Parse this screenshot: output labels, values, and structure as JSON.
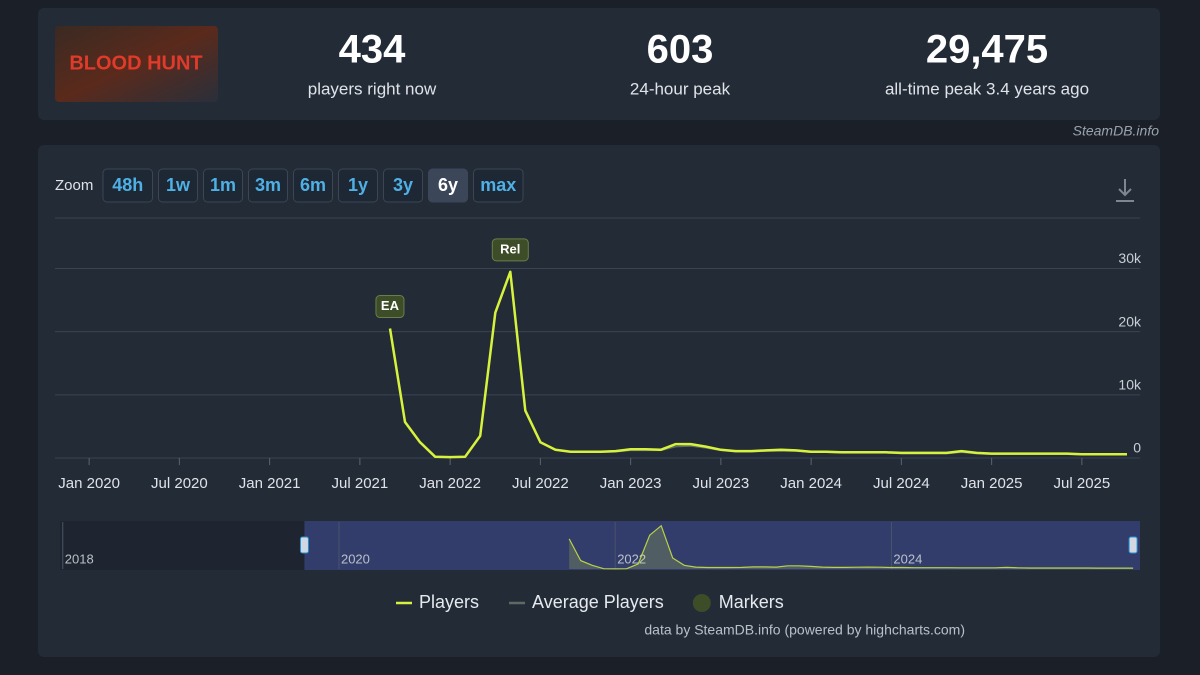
{
  "header": {
    "logo_text": "BLOOD HUNT",
    "stats": [
      {
        "value": 434,
        "label": "players right now"
      },
      {
        "value": 603,
        "label": "24-hour peak"
      },
      {
        "value": "29,475",
        "label": "all-time peak 3.4 years ago"
      }
    ],
    "source": "SteamDB.info"
  },
  "zoom": {
    "label": "Zoom",
    "buttons": [
      "48h",
      "1w",
      "1m",
      "3m",
      "6m",
      "1y",
      "3y",
      "6y",
      "max"
    ],
    "active": "6y"
  },
  "chart_data": {
    "type": "line",
    "x": [
      "2021-09",
      "2021-10",
      "2021-11",
      "2021-12",
      "2022-01",
      "2022-02",
      "2022-03",
      "2022-04",
      "2022-05",
      "2022-06",
      "2022-07",
      "2022-08",
      "2022-09",
      "2022-10",
      "2022-11",
      "2022-12",
      "2023-01",
      "2023-02",
      "2023-03",
      "2023-04",
      "2023-05",
      "2023-06",
      "2023-07",
      "2023-08",
      "2023-09",
      "2023-10",
      "2023-11",
      "2023-12",
      "2024-01",
      "2024-02",
      "2024-03",
      "2024-04",
      "2024-05",
      "2024-06",
      "2024-07",
      "2024-08",
      "2024-09",
      "2024-10",
      "2024-11",
      "2024-12",
      "2025-01",
      "2025-02",
      "2025-03",
      "2025-04",
      "2025-05",
      "2025-06",
      "2025-07",
      "2025-08",
      "2025-09",
      "2025-10"
    ],
    "series": [
      {
        "name": "Players",
        "color": "#d7f23c",
        "values": [
          20500,
          5700,
          2500,
          200,
          150,
          200,
          3500,
          23000,
          29475,
          7500,
          2500,
          1300,
          1000,
          1000,
          1000,
          1100,
          1400,
          1400,
          1300,
          2200,
          2200,
          1800,
          1300,
          1100,
          1100,
          1200,
          1300,
          1200,
          1000,
          1000,
          900,
          900,
          900,
          900,
          800,
          800,
          800,
          800,
          1100,
          800,
          700,
          700,
          700,
          700,
          700,
          700,
          600,
          600,
          600,
          600
        ]
      },
      {
        "name": "Average Players",
        "color": "#5f6b62",
        "values": [
          null,
          null,
          null,
          null,
          null,
          null,
          null,
          null,
          null,
          null,
          null,
          null,
          null,
          null,
          900,
          1000,
          1200,
          1200,
          1200,
          1800,
          1900,
          1600,
          1200,
          1000,
          1000,
          1100,
          1100,
          1100,
          900,
          900,
          800,
          800,
          800,
          800,
          700,
          700,
          700,
          700,
          900,
          700,
          600,
          600,
          600,
          600,
          600,
          600,
          500,
          500,
          500,
          500
        ]
      }
    ],
    "markers": {
      "name": "Markers",
      "color": "#3d4d28",
      "items": [
        {
          "label": "EA",
          "x": "2021-09"
        },
        {
          "label": "Rel",
          "x": "2022-05"
        }
      ]
    },
    "xlim": [
      "2019-10",
      "2025-10"
    ],
    "xticks": [
      {
        "value": "2020-01",
        "label": "Jan 2020"
      },
      {
        "value": "2020-07",
        "label": "Jul 2020"
      },
      {
        "value": "2021-01",
        "label": "Jan 2021"
      },
      {
        "value": "2021-07",
        "label": "Jul 2021"
      },
      {
        "value": "2022-01",
        "label": "Jan 2022"
      },
      {
        "value": "2022-07",
        "label": "Jul 2022"
      },
      {
        "value": "2023-01",
        "label": "Jan 2023"
      },
      {
        "value": "2023-07",
        "label": "Jul 2023"
      },
      {
        "value": "2024-01",
        "label": "Jan 2024"
      },
      {
        "value": "2024-07",
        "label": "Jul 2024"
      },
      {
        "value": "2025-01",
        "label": "Jan 2025"
      },
      {
        "value": "2025-07",
        "label": "Jul 2025"
      }
    ],
    "ylim": [
      0,
      38000
    ],
    "yticks": [
      0,
      {
        "value": 10000,
        "label": "10k"
      },
      {
        "value": 20000,
        "label": "20k"
      },
      {
        "value": 30000,
        "label": "30k"
      }
    ],
    "grid": true,
    "navigator": {
      "xlim": [
        2017.98,
        2025.8
      ],
      "xticks": [
        2018,
        2020,
        2022,
        2024
      ],
      "ylim": [
        0,
        32000
      ]
    },
    "credits": "data by SteamDB.info (powered by highcharts.com)"
  }
}
